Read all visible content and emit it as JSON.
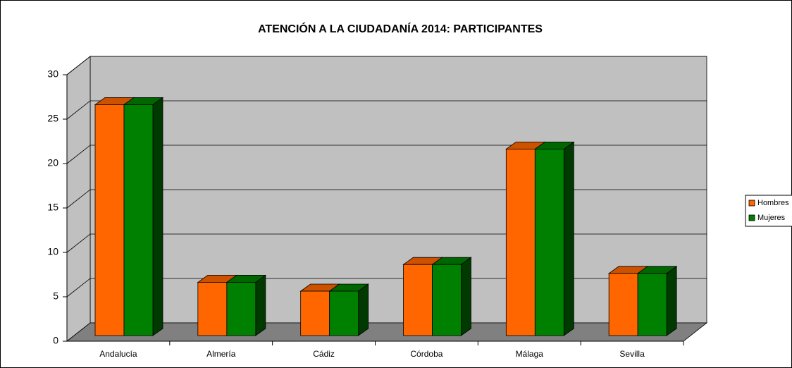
{
  "chart_data": {
    "type": "bar3d",
    "title": "ATENCIÓN A LA CIUDADANÍA 2014: PARTICIPANTES",
    "categories": [
      "Andalucía",
      "Almería",
      "Cádiz",
      "Córdoba",
      "Málaga",
      "Sevilla"
    ],
    "series": [
      {
        "name": "Hombres",
        "color": "#ff6600",
        "values": [
          26,
          6,
          5,
          8,
          21,
          7
        ]
      },
      {
        "name": "Mujeres",
        "color": "#008000",
        "values": [
          26,
          6,
          5,
          8,
          21,
          7
        ]
      }
    ],
    "ylim": [
      0,
      30
    ],
    "yticks": [
      0,
      5,
      10,
      15,
      20,
      25,
      30
    ],
    "grid": true,
    "legend": "right"
  }
}
